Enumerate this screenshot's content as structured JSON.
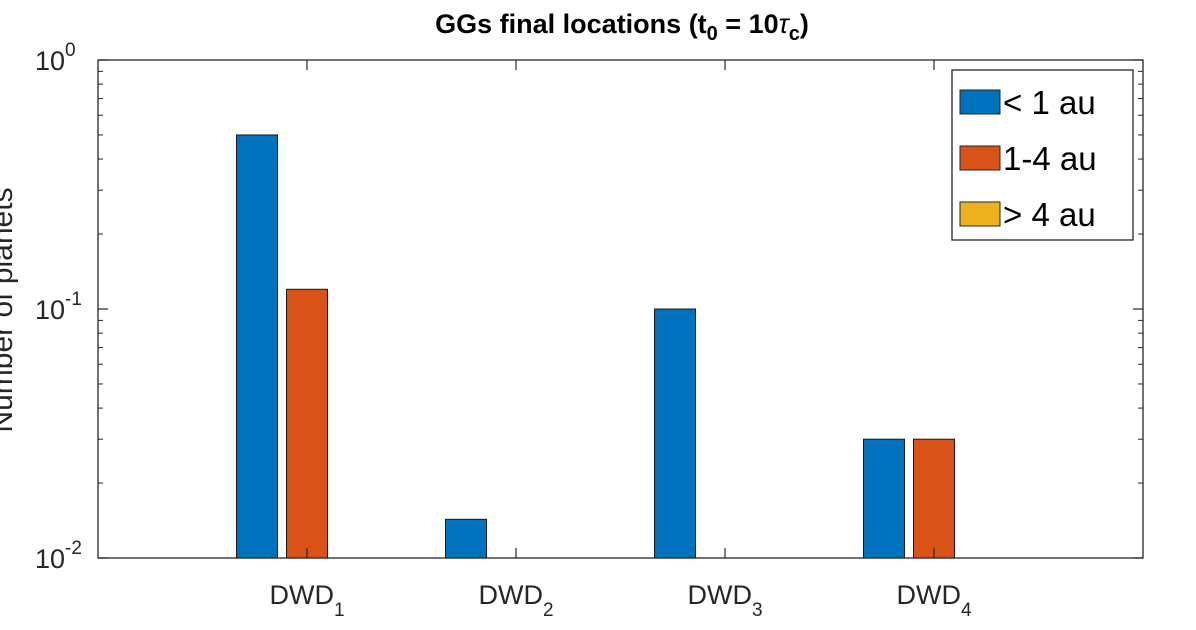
{
  "chart_data": {
    "type": "bar",
    "title": {
      "prefix": "GGs final locations (t",
      "sub0": "0",
      "middle": " = 10",
      "tau": "τ",
      "subc": "c",
      "suffix": ")"
    },
    "ylabel": "Number of planets",
    "yscale": "log",
    "ylim": [
      0.01,
      1
    ],
    "yticks": [
      {
        "value": 0.01,
        "base": "10",
        "exp": "-2"
      },
      {
        "value": 0.1,
        "base": "10",
        "exp": "-1"
      },
      {
        "value": 1,
        "base": "10",
        "exp": "0"
      }
    ],
    "categories": [
      {
        "base": "DWD",
        "sub": "1"
      },
      {
        "base": "DWD",
        "sub": "2"
      },
      {
        "base": "DWD",
        "sub": "3"
      },
      {
        "base": "DWD",
        "sub": "4"
      }
    ],
    "series": [
      {
        "name": "< 1 au",
        "color": "#0072BD",
        "values": [
          0.5,
          0.0143,
          0.1,
          0.03
        ]
      },
      {
        "name": "1-4 au",
        "color": "#D95319",
        "values": [
          0.12,
          0,
          0,
          0.03
        ]
      },
      {
        "name": "> 4 au",
        "color": "#EDB120",
        "values": [
          0,
          0,
          0,
          0
        ]
      }
    ],
    "grid": false,
    "legend_position": "top-right"
  }
}
